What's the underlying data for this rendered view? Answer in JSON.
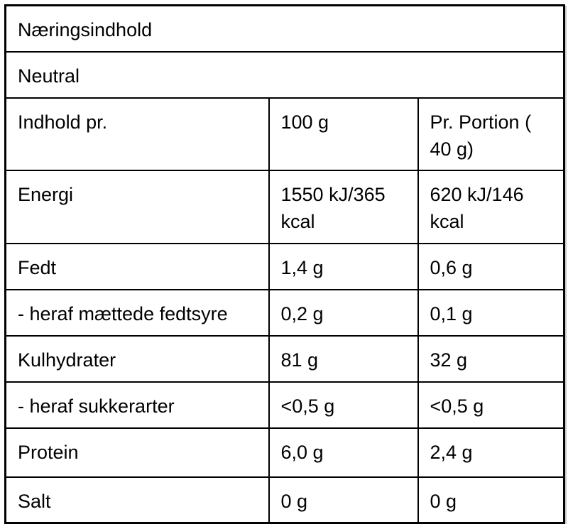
{
  "table": {
    "title": "Næringsindhold",
    "subtitle": "Neutral",
    "columns": {
      "label": "Indhold pr.",
      "per100": "100 g",
      "portion": "Pr. Portion ( 40 g)"
    },
    "rows": [
      {
        "label": "Energi",
        "per100": "1550 kJ/365 kcal",
        "portion": "620 kJ/146 kcal"
      },
      {
        "label": "Fedt",
        "per100": "1,4 g",
        "portion": "0,6 g"
      },
      {
        "label": "- heraf mættede fedtsyre",
        "per100": "0,2 g",
        "portion": "0,1 g"
      },
      {
        "label": "Kulhydrater",
        "per100": "81 g",
        "portion": "32 g"
      },
      {
        "label": "- heraf sukkerarter",
        "per100": "<0,5 g",
        "portion": "<0,5 g"
      },
      {
        "label": "Protein",
        "per100": "6,0 g",
        "portion": "2,4 g"
      },
      {
        "label": "Salt",
        "per100": "0 g",
        "portion": "0 g"
      }
    ],
    "colors": {
      "text": "#000000",
      "border": "#000000",
      "background": "#ffffff"
    }
  }
}
